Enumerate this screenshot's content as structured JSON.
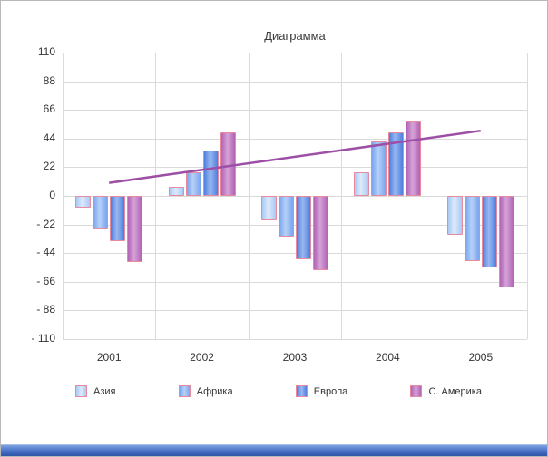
{
  "chart_data": {
    "type": "bar",
    "title": "Диаграмма",
    "categories": [
      "2001",
      "2002",
      "2003",
      "2004",
      "2005"
    ],
    "series": [
      {
        "name": "Азия",
        "color": "#a9c9f4",
        "color_light": "#ddeafc",
        "values": [
          -9,
          7,
          -19,
          18,
          -30
        ]
      },
      {
        "name": "Африка",
        "color": "#79a5ee",
        "color_light": "#b7d0f8",
        "values": [
          -26,
          18,
          -31,
          42,
          -50
        ]
      },
      {
        "name": "Европа",
        "color": "#4d7ede",
        "color_light": "#9ab8f0",
        "values": [
          -35,
          35,
          -49,
          49,
          -55
        ]
      },
      {
        "name": "С. Америка",
        "color": "#b163b4",
        "color_light": "#d6a3d8",
        "values": [
          -51,
          49,
          -57,
          58,
          -70
        ]
      }
    ],
    "trendline": {
      "color": "#9c4fa5",
      "start_value": 10,
      "end_value": 50
    },
    "ylim": [
      -110,
      110
    ],
    "yticks": [
      110,
      88,
      66,
      44,
      22,
      0,
      -22,
      -44,
      -66,
      -88,
      -110
    ],
    "negative_tick_prefix": "- ",
    "bar_border_color": "#e8899e",
    "grid": true,
    "legend_position": "bottom",
    "xlabel": "",
    "ylabel": ""
  }
}
